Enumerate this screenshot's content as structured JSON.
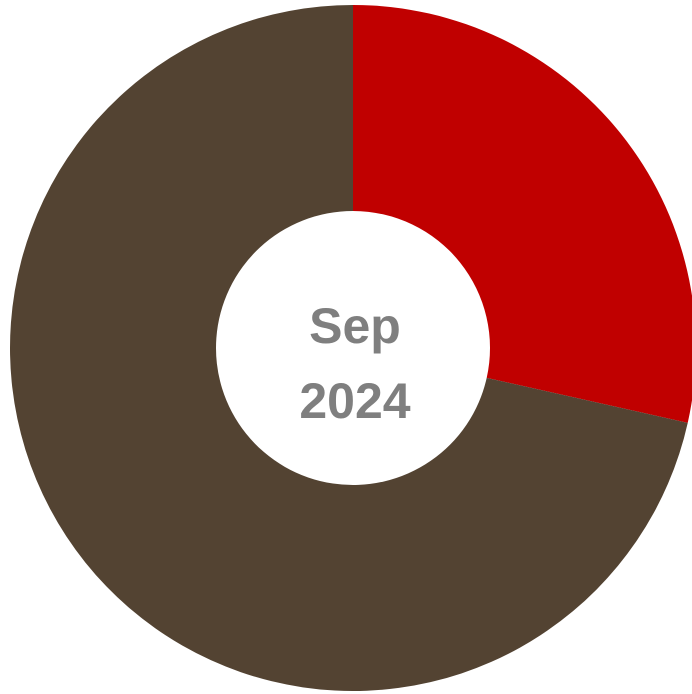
{
  "chart_data": {
    "type": "pie",
    "variant": "donut",
    "categories": [
      "",
      ""
    ],
    "values": [
      28.5,
      71.5
    ],
    "value_unit": "percent",
    "colors": [
      "#c00000",
      "#534332"
    ],
    "center_label": {
      "line1": "Sep",
      "line2": "2024"
    },
    "start_angle": "12 o'clock",
    "direction": "clockwise",
    "legend": "none",
    "data_labels": "none"
  },
  "colors": {
    "background": "#ffffff",
    "center_text": "#7f7f7f"
  }
}
